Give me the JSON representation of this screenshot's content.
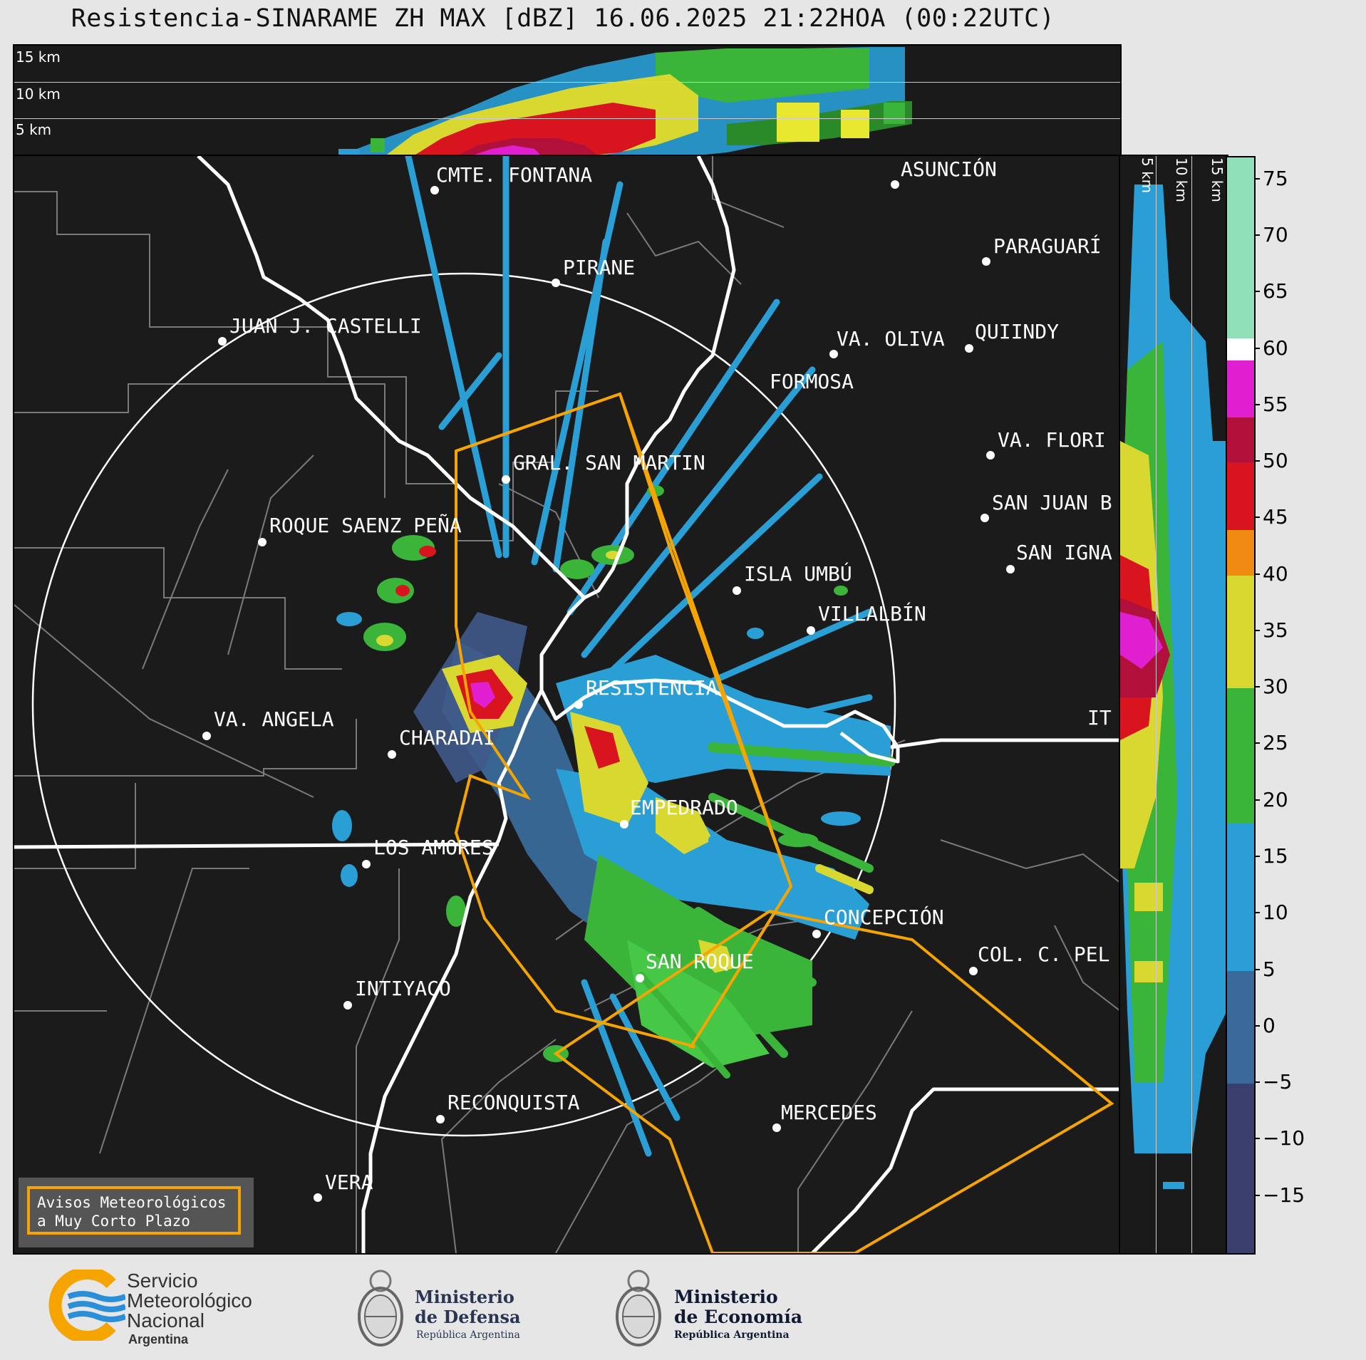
{
  "header": {
    "title": "Resistencia-SINARAME ZH MAX [dBZ] 16.06.2025 21:22HOA (00:22UTC)"
  },
  "top_panel": {
    "levels": [
      "15 km",
      "10 km",
      "5 km"
    ]
  },
  "side_panel": {
    "levels": [
      "5 km",
      "10 km",
      "15 km"
    ]
  },
  "map": {
    "cities": [
      {
        "name": "CMTE. FONTANA"
      },
      {
        "name": "PIRANE"
      },
      {
        "name": "ASUNCIÓN"
      },
      {
        "name": "PARAGUARÍ"
      },
      {
        "name": "JUAN J. CASTELLI"
      },
      {
        "name": "VA. OLIVA"
      },
      {
        "name": "QUIINDY"
      },
      {
        "name": "FORMOSA"
      },
      {
        "name": "VA. FLORI"
      },
      {
        "name": "GRAL. SAN MARTIN"
      },
      {
        "name": "SAN JUAN B"
      },
      {
        "name": "ROQUE SAENZ PEÑA"
      },
      {
        "name": "SAN IGNA"
      },
      {
        "name": "ISLA UMBÚ"
      },
      {
        "name": "VILLALBÍN"
      },
      {
        "name": "RESISTENCIA"
      },
      {
        "name": "VA. ANGELA"
      },
      {
        "name": "CHARADAI"
      },
      {
        "name": "IT"
      },
      {
        "name": "EMPEDRADO"
      },
      {
        "name": "LOS AMORES"
      },
      {
        "name": "CONCEPCIÓN"
      },
      {
        "name": "SAN ROQUE"
      },
      {
        "name": "COL. C. PEL"
      },
      {
        "name": "INTIYACO"
      },
      {
        "name": "RECONQUISTA"
      },
      {
        "name": "MERCEDES"
      },
      {
        "name": "VERA"
      }
    ]
  },
  "colorbar": {
    "unit": "dBZ",
    "ticks": [
      "75",
      "70",
      "65",
      "60",
      "55",
      "50",
      "45",
      "40",
      "35",
      "30",
      "25",
      "20",
      "15",
      "10",
      "5",
      "0",
      "−5",
      "−10",
      "−15"
    ],
    "tick_values": [
      75,
      70,
      65,
      60,
      55,
      50,
      45,
      40,
      35,
      30,
      25,
      20,
      15,
      10,
      5,
      0,
      -5,
      -10,
      -15
    ],
    "range": [
      -20,
      77
    ],
    "bands": [
      {
        "from": -20,
        "to": -5,
        "color": "#3a3f6e"
      },
      {
        "from": -5,
        "to": 5,
        "color": "#3a6a9a"
      },
      {
        "from": 5,
        "to": 18,
        "color": "#2a9fd6"
      },
      {
        "from": 18,
        "to": 30,
        "color": "#3ab53a"
      },
      {
        "from": 30,
        "to": 40,
        "color": "#d8d830"
      },
      {
        "from": 40,
        "to": 44,
        "color": "#f08a10"
      },
      {
        "from": 44,
        "to": 50,
        "color": "#d8141e"
      },
      {
        "from": 50,
        "to": 54,
        "color": "#b0103a"
      },
      {
        "from": 54,
        "to": 59,
        "color": "#e020d0"
      },
      {
        "from": 59,
        "to": 61,
        "color": "#ffffff"
      },
      {
        "from": 61,
        "to": 77,
        "color": "#8fe0b8"
      }
    ]
  },
  "warning_box": {
    "line1": "Avisos Meteorológicos",
    "line2": "a Muy Corto Plazo"
  },
  "footer": {
    "smn": {
      "line1": "Servicio",
      "line2": "Meteorológico",
      "line3": "Nacional",
      "line4": "Argentina"
    },
    "defensa": {
      "line1": "Ministerio",
      "line2": "de Defensa",
      "line3": "República Argentina"
    },
    "economia": {
      "line1": "Ministerio",
      "line2": "de Economía",
      "line3": "República Argentina"
    }
  },
  "colors": {
    "warning_outline": "#f5a400",
    "echo_blue": "#2a9fd6",
    "echo_green": "#3ab53a",
    "echo_yellow": "#d8d830",
    "echo_red": "#d8141e",
    "echo_magenta": "#e020d0",
    "smn_orange": "#f5a400",
    "smn_blue": "#2a8fd6"
  }
}
